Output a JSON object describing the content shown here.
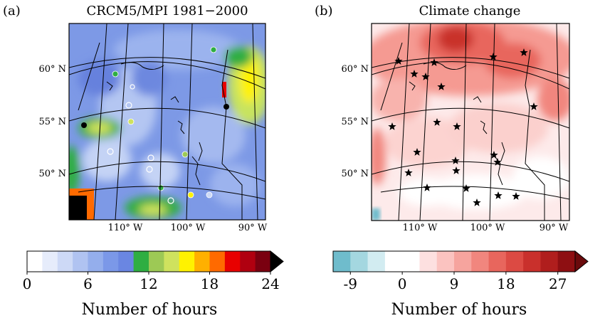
{
  "chart_data": [
    {
      "type": "heatmap",
      "panel_label": "(a)",
      "title": "CRCM5/MPI  1981−2000",
      "lat_tick_labels": [
        "60° N",
        "55° N",
        "50° N"
      ],
      "lon_tick_labels": [
        "110° W",
        "100° W",
        "90° W"
      ],
      "colorbar": {
        "ticks": [
          0,
          6,
          12,
          18,
          24
        ],
        "label": "Number of hours",
        "range": [
          0,
          24
        ],
        "extend": "max",
        "colors": [
          "#ffffff",
          "#e6ecfb",
          "#cdd9f6",
          "#b0c3f1",
          "#94aeec",
          "#7b98e8",
          "#6a86e2",
          "#2fae42",
          "#9dc955",
          "#cfe25e",
          "#fff200",
          "#ffb000",
          "#ff6a00",
          "#e80000",
          "#b00010",
          "#7a0010",
          "#000000"
        ]
      }
    },
    {
      "type": "heatmap",
      "panel_label": "(b)",
      "title": "Climate change",
      "lat_tick_labels": [
        "60° N",
        "55° N",
        "50° N"
      ],
      "lon_tick_labels": [
        "110° W",
        "100° W",
        "90° W"
      ],
      "colorbar": {
        "ticks": [
          -9,
          0,
          9,
          18,
          27
        ],
        "label": "Number of hours",
        "range": [
          -12,
          30
        ],
        "extend": "max",
        "colors": [
          "#6fbccc",
          "#a4d7e0",
          "#d2ecf1",
          "#ffffff",
          "#ffffff",
          "#fde0e0",
          "#fbc3c0",
          "#f6a49e",
          "#f1867e",
          "#e8665d",
          "#dc4a43",
          "#c9302c",
          "#b01e1d",
          "#8e0f12",
          "#6a0a0c"
        ]
      }
    }
  ]
}
